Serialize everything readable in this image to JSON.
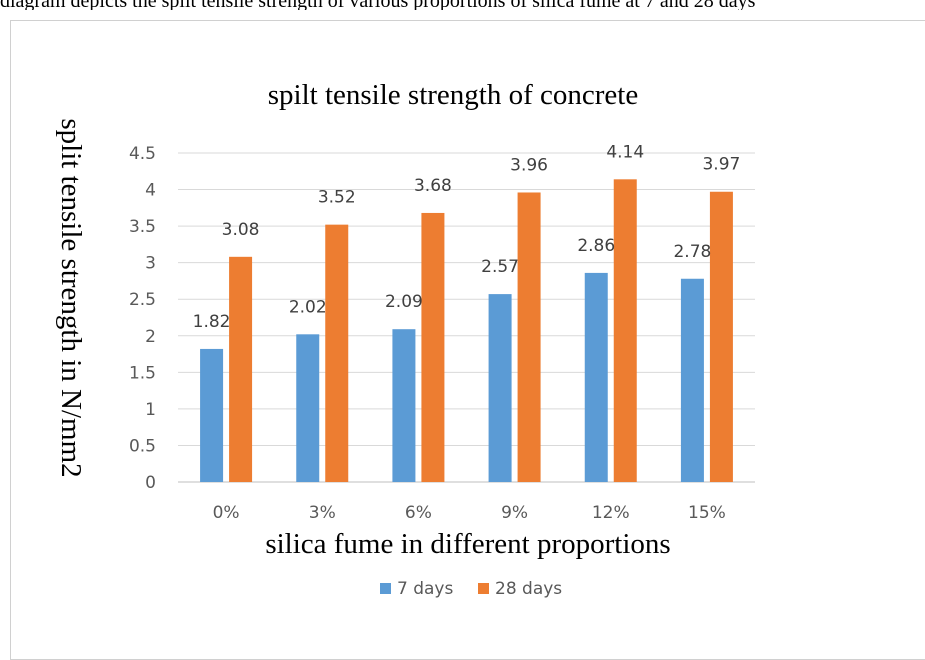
{
  "page": {
    "top_caption": "diagram depicts the split tensile strength of various proportions of silica fume at 7 and 28 days"
  },
  "chart_data": {
    "type": "bar",
    "title": "spilt tensile strength of concrete",
    "xlabel": "silica fume in different proportions",
    "ylabel": "split tensile strength in N/mm2",
    "categories": [
      "0%",
      "3%",
      "6%",
      "9%",
      "12%",
      "15%"
    ],
    "series": [
      {
        "name": "7 days",
        "color": "#5b9bd5",
        "values": [
          1.82,
          2.02,
          2.09,
          2.57,
          2.86,
          2.78
        ]
      },
      {
        "name": "28 days",
        "color": "#ed7d31",
        "values": [
          3.08,
          3.52,
          3.68,
          3.96,
          4.14,
          3.97
        ]
      }
    ],
    "ylim": [
      0,
      4.5
    ],
    "yticks": [
      "0",
      "0.5",
      "1",
      "1.5",
      "2",
      "2.5",
      "3",
      "3.5",
      "4",
      "4.5"
    ],
    "grid": true,
    "legend_position": "bottom"
  }
}
